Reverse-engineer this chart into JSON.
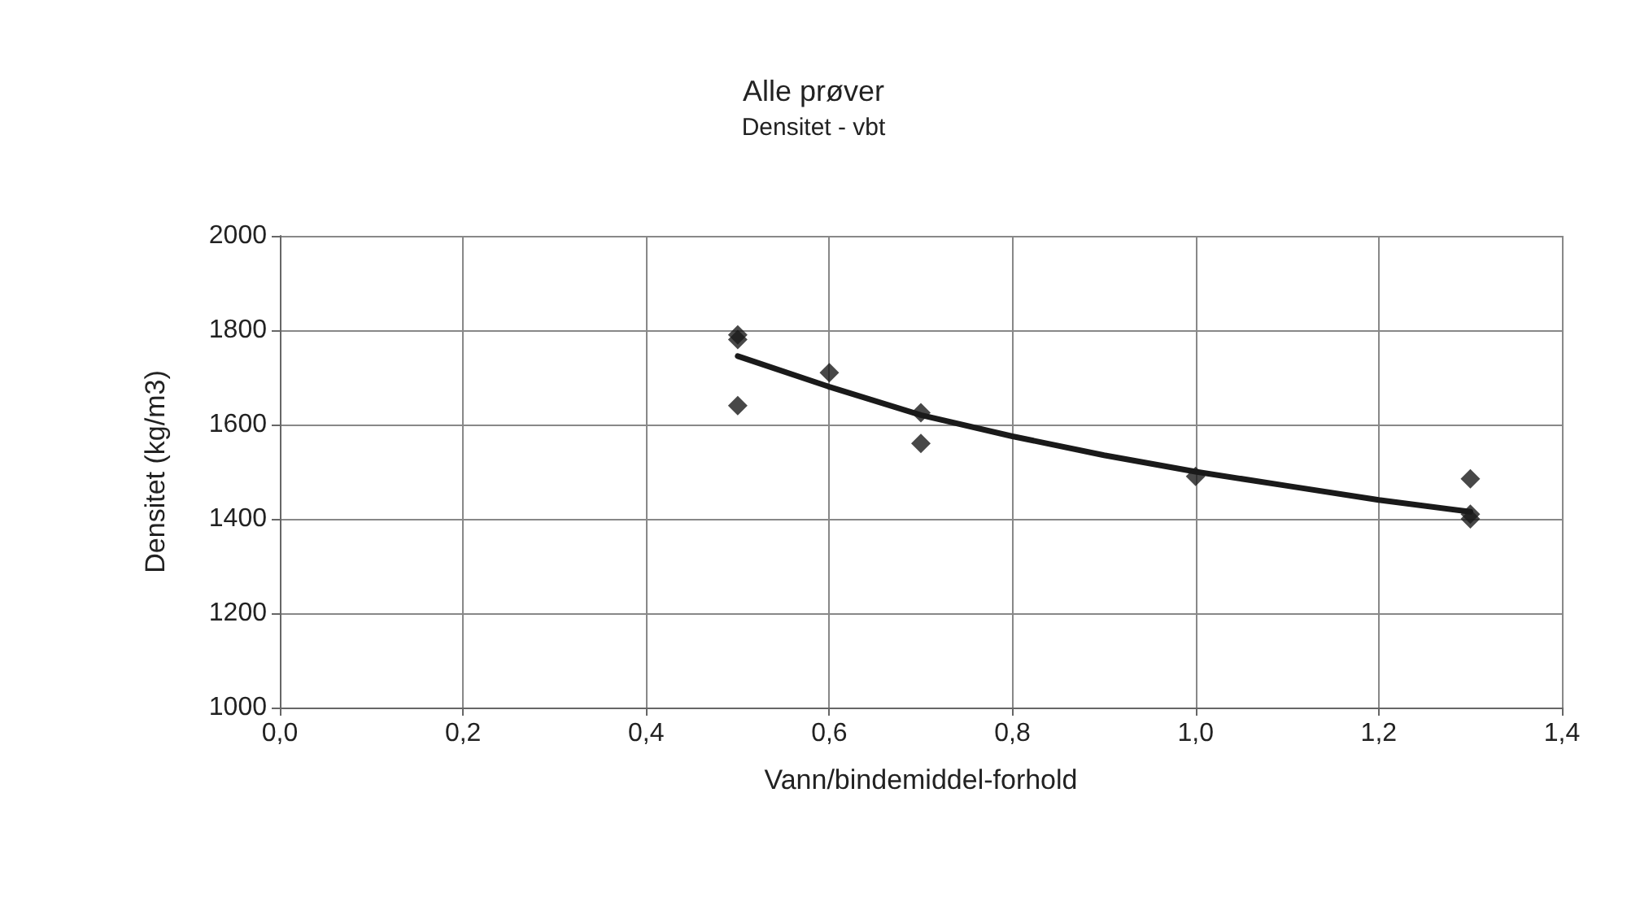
{
  "chart_data": {
    "type": "scatter",
    "title": "Alle prøver",
    "subtitle": "Densitet - vbt",
    "xlabel": "Vann/bindemiddel-forhold",
    "ylabel": "Densitet (kg/m3)",
    "xlim": [
      0,
      1.4
    ],
    "xticks": [
      {
        "value": 0,
        "label": "0,0"
      },
      {
        "value": 0.2,
        "label": "0,2"
      },
      {
        "value": 0.4,
        "label": "0,4"
      },
      {
        "value": 0.6,
        "label": "0,6"
      },
      {
        "value": 0.8,
        "label": "0,8"
      },
      {
        "value": 1.0,
        "label": "1,0"
      },
      {
        "value": 1.2,
        "label": "1,2"
      },
      {
        "value": 1.4,
        "label": "1,4"
      }
    ],
    "ylim": [
      1000,
      2000
    ],
    "yticks": [
      1000,
      1200,
      1400,
      1600,
      1800,
      2000
    ],
    "grid": true,
    "marker": "diamond",
    "series": [
      {
        "color": "#1a1a1a",
        "x": [
          0.5,
          0.5,
          0.5,
          0.6,
          0.7,
          0.7,
          1.0,
          1.3,
          1.3,
          1.3
        ],
        "values": [
          1790,
          1780,
          1640,
          1710,
          1625,
          1560,
          1490,
          1485,
          1410,
          1400
        ]
      },
      {
        "type": "line",
        "color": "#1a1a1a",
        "line_style": "solid",
        "marker": "none",
        "x": [
          0.5,
          0.6,
          0.7,
          0.8,
          0.9,
          1.0,
          1.1,
          1.2,
          1.3
        ],
        "values": [
          1745,
          1680,
          1620,
          1575,
          1535,
          1500,
          1470,
          1440,
          1415
        ]
      }
    ]
  }
}
